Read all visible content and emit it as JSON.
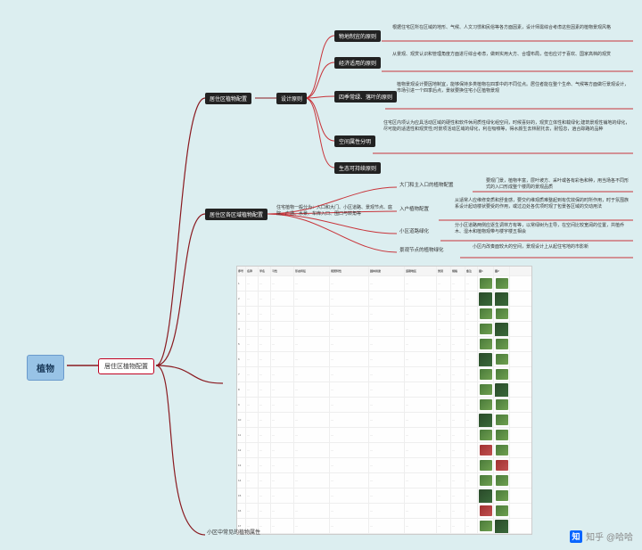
{
  "root": "植物",
  "level1": "居住区植物配置",
  "branchA": {
    "label": "居住区植物配置",
    "sub": "设计原则",
    "principles": [
      {
        "name": "物地制宜的原则",
        "desc": "根据住宅区所在区域的地形、气候、人文习惯和民俗等各方面因素，设计师需综合考虑这些因素的植物景观风格"
      },
      {
        "name": "经济适用的原则",
        "desc": "从景观、观赏认识和管理角度方面进行综合考虑，做到实用大方、合理布局，但也应讨于喜欢、国家高档的观赏"
      },
      {
        "name": "四季常绿、落叶的原则",
        "desc": "植物景观设计要因地制宜，能够保持多类植物在四季中的不同位点。居住者能在整个生命、气候等方面做行景观设计，市场引进一个四季后点，景就要换住宅小区植物景观"
      },
      {
        "name": "空间属性分明",
        "desc": "住宅区内项认为应具活动区域的硬性和软件休闲质性绿化组空间，时候喜好的，观赏立体性和载绿化;建筑景观性铺地的绿化，尽可能的适透性和观赏性;时景项活动区域的绿化，利在吸噴等，得水颜生去林耐托去，耐恒息，逍合踪路的品种"
      },
      {
        "name": "生态可持续原则",
        "desc": ""
      }
    ]
  },
  "branchB": {
    "label": "居住区各区域植物配置",
    "desc": "住宅植物一般分为：入口和大门、小区道路、景观节点、庭院、广场、水景、车库入口、围口与转角等",
    "items": [
      {
        "name": "大门和主入口的植物配置",
        "desc": "要观门景，植物丰富，层叶坡方、采叶或各有彩色和种，用当场各不同形式的入口形成整个楼周的景观品质"
      },
      {
        "name": "入户植物配置",
        "desc": "从适常人应维修变质和舒金感，要交约维观质难整起到有优效保的时所作用，时于氛围族系设计起动楼状要受的作用，或过边处各优项时观了包景各区域的交动用法"
      },
      {
        "name": "小区道路绿化",
        "desc": "分小区道路两侧应逐生调林方有等，以常绿树为主导，在空间比较宽阔的位置，共植乔木、湿木和植物观带与楼宇楼五相会"
      },
      {
        "name": "景观节点的植物绿化",
        "desc": "小区内改奏面较大的空间，景观设计上从起住宅地的市影新"
      }
    ]
  },
  "branchC": {
    "label": "小区中常见的植物属性"
  },
  "table": {
    "headers": [
      "序号",
      "名称",
      "学名",
      "习性",
      "形态特征",
      "观赏特性",
      "园林用途",
      "适栽地区",
      "类别",
      "规格",
      "备注",
      "图1",
      "图2"
    ],
    "rows": [
      {
        "t1": "green",
        "t2": "green"
      },
      {
        "t1": "dark",
        "t2": "dark"
      },
      {
        "t1": "green",
        "t2": "green"
      },
      {
        "t1": "green",
        "t2": "dark"
      },
      {
        "t1": "green",
        "t2": "green"
      },
      {
        "t1": "dark",
        "t2": "green"
      },
      {
        "t1": "green",
        "t2": "green"
      },
      {
        "t1": "green",
        "t2": "dark"
      },
      {
        "t1": "green",
        "t2": "green"
      },
      {
        "t1": "dark",
        "t2": "green"
      },
      {
        "t1": "green",
        "t2": "green"
      },
      {
        "t1": "red",
        "t2": "green"
      },
      {
        "t1": "green",
        "t2": "red"
      },
      {
        "t1": "green",
        "t2": "green"
      },
      {
        "t1": "dark",
        "t2": "green"
      },
      {
        "t1": "red",
        "t2": "green"
      },
      {
        "t1": "green",
        "t2": "dark"
      },
      {
        "t1": "red",
        "t2": "red"
      }
    ]
  },
  "watermark": "知乎 @哈哈",
  "colors": {
    "line_main": "#8a1a20",
    "line_sub": "#c8343a"
  }
}
